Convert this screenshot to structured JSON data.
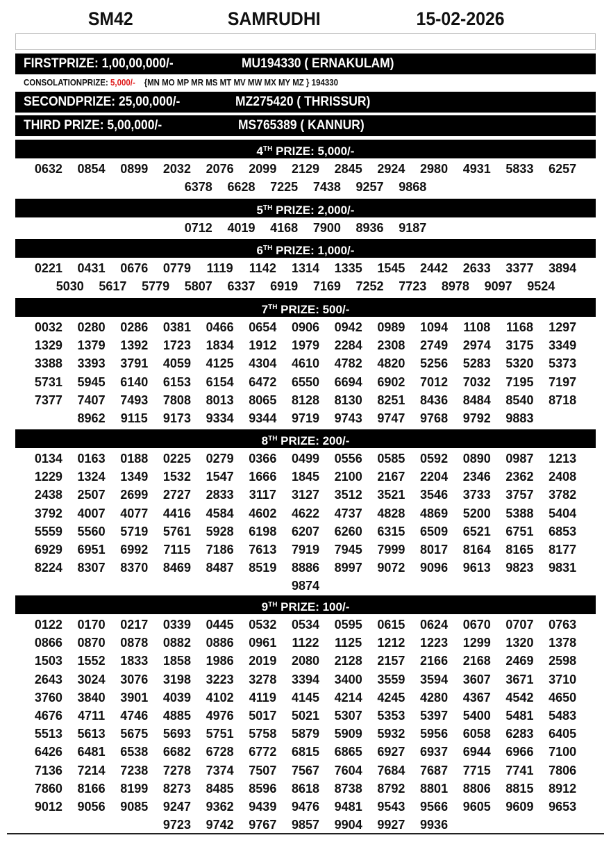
{
  "header": {
    "code": "SM42",
    "name": "SAMRUDHI",
    "date": "15-02-2026"
  },
  "first": {
    "label": "FIRSTPRIZE: 1,00,00,000/-",
    "winner": "MU194330 ( ERNAKULAM)"
  },
  "consolation": {
    "label": "CONSOLATIONPRIZE:",
    "amount": "5,000/-",
    "series": "{MN MO MP MR MS MT MV MW MX MY MZ } 194330"
  },
  "second": {
    "label": "SECONDPRIZE: 25,00,000/-",
    "winner": "MZ275420 ( THRISSUR)"
  },
  "third": {
    "label": "THIRD PRIZE: 5,00,000/-",
    "winner": "MS765389 ( KANNUR)"
  },
  "prizes": [
    {
      "ord": "4",
      "sup": "TH",
      "label": "PRIZE: 5,000/-",
      "numbers": [
        "0632",
        "0854",
        "0899",
        "2032",
        "2076",
        "2099",
        "2129",
        "2845",
        "2924",
        "2980",
        "4931",
        "5833",
        "6257",
        "6378",
        "6628",
        "7225",
        "7438",
        "9257",
        "9868"
      ]
    },
    {
      "ord": "5",
      "sup": "TH",
      "label": "PRIZE: 2,000/-",
      "numbers": [
        "0712",
        "4019",
        "4168",
        "7900",
        "8936",
        "9187"
      ]
    },
    {
      "ord": "6",
      "sup": "TH",
      "label": "PRIZE: 1,000/-",
      "numbers": [
        "0221",
        "0431",
        "0676",
        "0779",
        "1119",
        "1142",
        "1314",
        "1335",
        "1545",
        "2442",
        "2633",
        "3377",
        "3894",
        "5030",
        "5617",
        "5779",
        "5807",
        "6337",
        "6919",
        "7169",
        "7252",
        "7723",
        "8978",
        "9097",
        "9524"
      ]
    },
    {
      "ord": "7",
      "sup": "TH",
      "label": "PRIZE: 500/-",
      "numbers": [
        "0032",
        "0280",
        "0286",
        "0381",
        "0466",
        "0654",
        "0906",
        "0942",
        "0989",
        "1094",
        "1108",
        "1168",
        "1297",
        "1329",
        "1379",
        "1392",
        "1723",
        "1834",
        "1912",
        "1979",
        "2284",
        "2308",
        "2749",
        "2974",
        "3175",
        "3349",
        "3388",
        "3393",
        "3791",
        "4059",
        "4125",
        "4304",
        "4610",
        "4782",
        "4820",
        "5256",
        "5283",
        "5320",
        "5373",
        "5731",
        "5945",
        "6140",
        "6153",
        "6154",
        "6472",
        "6550",
        "6694",
        "6902",
        "7012",
        "7032",
        "7195",
        "7197",
        "7377",
        "7407",
        "7493",
        "7808",
        "8013",
        "8065",
        "8128",
        "8130",
        "8251",
        "8436",
        "8484",
        "8540",
        "8718",
        "8962",
        "9115",
        "9173",
        "9334",
        "9344",
        "9719",
        "9743",
        "9747",
        "9768",
        "9792",
        "9883"
      ]
    },
    {
      "ord": "8",
      "sup": "TH",
      "label": "PRIZE: 200/-",
      "numbers": [
        "0134",
        "0163",
        "0188",
        "0225",
        "0279",
        "0366",
        "0499",
        "0556",
        "0585",
        "0592",
        "0890",
        "0987",
        "1213",
        "1229",
        "1324",
        "1349",
        "1532",
        "1547",
        "1666",
        "1845",
        "2100",
        "2167",
        "2204",
        "2346",
        "2362",
        "2408",
        "2438",
        "2507",
        "2699",
        "2727",
        "2833",
        "3117",
        "3127",
        "3512",
        "3521",
        "3546",
        "3733",
        "3757",
        "3782",
        "3792",
        "4007",
        "4077",
        "4416",
        "4584",
        "4602",
        "4622",
        "4737",
        "4828",
        "4869",
        "5200",
        "5388",
        "5404",
        "5559",
        "5560",
        "5719",
        "5761",
        "5928",
        "6198",
        "6207",
        "6260",
        "6315",
        "6509",
        "6521",
        "6751",
        "6853",
        "6929",
        "6951",
        "6992",
        "7115",
        "7186",
        "7613",
        "7919",
        "7945",
        "7999",
        "8017",
        "8164",
        "8165",
        "8177",
        "8224",
        "8307",
        "8370",
        "8469",
        "8487",
        "8519",
        "8886",
        "8997",
        "9072",
        "9096",
        "9613",
        "9823",
        "9831",
        "9874"
      ]
    },
    {
      "ord": "9",
      "sup": "TH",
      "label": "PRIZE: 100/-",
      "numbers": [
        "0122",
        "0170",
        "0217",
        "0339",
        "0445",
        "0532",
        "0534",
        "0595",
        "0615",
        "0624",
        "0670",
        "0707",
        "0763",
        "0866",
        "0870",
        "0878",
        "0882",
        "0886",
        "0961",
        "1122",
        "1125",
        "1212",
        "1223",
        "1299",
        "1320",
        "1378",
        "1503",
        "1552",
        "1833",
        "1858",
        "1986",
        "2019",
        "2080",
        "2128",
        "2157",
        "2166",
        "2168",
        "2469",
        "2598",
        "2643",
        "3024",
        "3076",
        "3198",
        "3223",
        "3278",
        "3394",
        "3400",
        "3559",
        "3594",
        "3607",
        "3671",
        "3710",
        "3760",
        "3840",
        "3901",
        "4039",
        "4102",
        "4119",
        "4145",
        "4214",
        "4245",
        "4280",
        "4367",
        "4542",
        "4650",
        "4676",
        "4711",
        "4746",
        "4885",
        "4976",
        "5017",
        "5021",
        "5307",
        "5353",
        "5397",
        "5400",
        "5481",
        "5483",
        "5513",
        "5613",
        "5675",
        "5693",
        "5751",
        "5758",
        "5879",
        "5909",
        "5932",
        "5956",
        "6058",
        "6283",
        "6405",
        "6426",
        "6481",
        "6538",
        "6682",
        "6728",
        "6772",
        "6815",
        "6865",
        "6927",
        "6937",
        "6944",
        "6966",
        "7100",
        "7136",
        "7214",
        "7238",
        "7278",
        "7374",
        "7507",
        "7567",
        "7604",
        "7684",
        "7687",
        "7715",
        "7741",
        "7806",
        "7860",
        "8166",
        "8199",
        "8273",
        "8485",
        "8596",
        "8618",
        "8738",
        "8792",
        "8801",
        "8806",
        "8815",
        "8912",
        "9012",
        "9056",
        "9085",
        "9247",
        "9362",
        "9439",
        "9476",
        "9481",
        "9543",
        "9566",
        "9605",
        "9609",
        "9653",
        "9723",
        "9742",
        "9767",
        "9857",
        "9904",
        "9927",
        "9936"
      ]
    }
  ]
}
